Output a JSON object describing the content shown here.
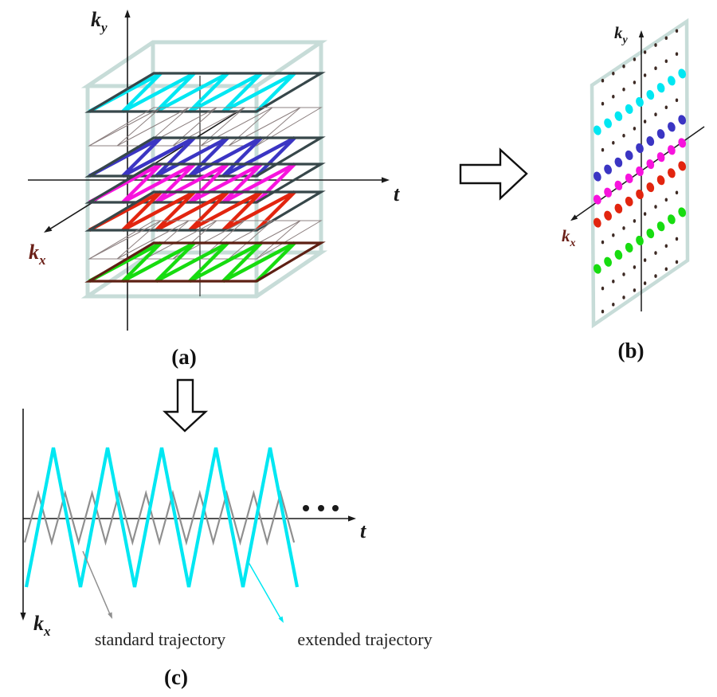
{
  "figure_type": "k-space trajectory diagram",
  "colors": {
    "frame": "#c7dcd8",
    "plane_border": "#37474a",
    "maroon": "#5e2014",
    "axis": "#1a1a1a",
    "kx_label_dark_red": "#6b2018",
    "thin_gray": "#8d8080",
    "traj_gray": "#8f8f8f",
    "small_dot": "#3d2a24",
    "cyan": "#00e7f2",
    "blue": "#3b35c3",
    "magenta": "#f713dd",
    "red": "#e2250f",
    "green": "#17dc10"
  },
  "panel_a": {
    "caption": "(a)",
    "ky_label": {
      "main": "k",
      "sub": "y"
    },
    "t_label": "t",
    "kx_label": {
      "main": "k",
      "sub": "x"
    },
    "planes": [
      {
        "kind": "thick",
        "color": "cyan",
        "border": "plane_border"
      },
      {
        "kind": "thin",
        "color": "thin_gray",
        "border": "thin_gray"
      },
      {
        "kind": "thick",
        "color": "blue",
        "border": "plane_border"
      },
      {
        "kind": "thick",
        "color": "magenta",
        "border": "plane_border"
      },
      {
        "kind": "thick",
        "color": "red",
        "border": "plane_border"
      },
      {
        "kind": "thin",
        "color": "thin_gray",
        "border": "thin_gray"
      },
      {
        "kind": "thick",
        "color": "green",
        "border": "maroon"
      }
    ]
  },
  "panel_b": {
    "caption": "(b)",
    "ky_label": {
      "main": "k",
      "sub": "y"
    },
    "kx_label": {
      "main": "k",
      "sub": "x"
    },
    "rows": [
      {
        "kind": "small"
      },
      {
        "kind": "small"
      },
      {
        "kind": "big",
        "color": "cyan"
      },
      {
        "kind": "small"
      },
      {
        "kind": "big",
        "color": "blue"
      },
      {
        "kind": "big",
        "color": "magenta"
      },
      {
        "kind": "big",
        "color": "red"
      },
      {
        "kind": "small"
      },
      {
        "kind": "big",
        "color": "green"
      },
      {
        "kind": "small"
      },
      {
        "kind": "small"
      }
    ]
  },
  "panel_c": {
    "caption": "(c)",
    "t_label": "t",
    "kx_label": {
      "main": "k",
      "sub": "x"
    },
    "trajectories": [
      {
        "name": "standard trajectory",
        "color": "traj_gray",
        "peaks": 10,
        "amplitude": "small"
      },
      {
        "name": "extended trajectory",
        "color": "cyan",
        "peaks": 5,
        "amplitude": "large"
      }
    ]
  }
}
